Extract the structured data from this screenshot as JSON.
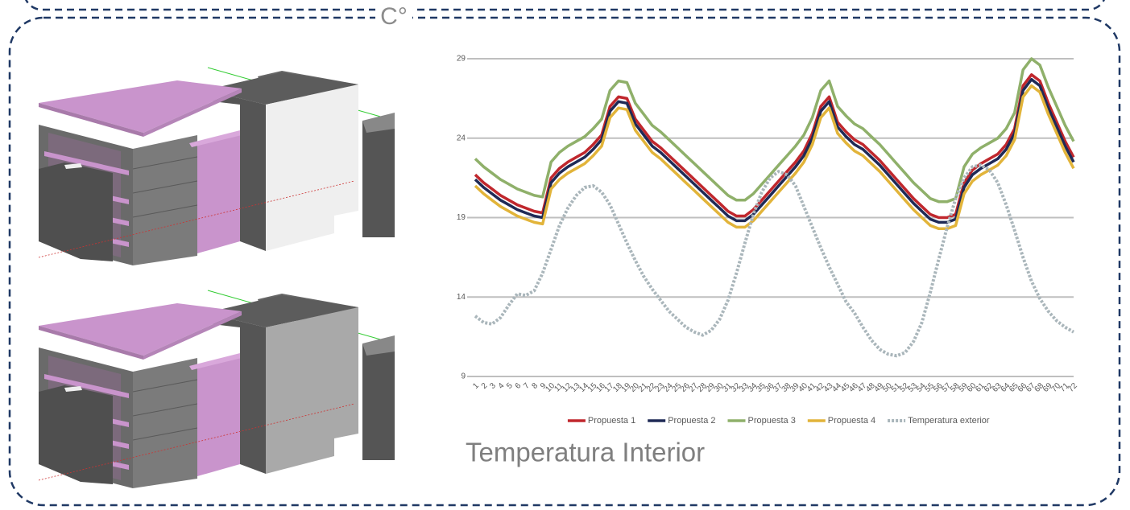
{
  "chart_data": {
    "type": "line",
    "title": "Temperatura Interior",
    "y_label": "C°",
    "categories": [
      "1",
      "2",
      "3",
      "4",
      "5",
      "6",
      "7",
      "8",
      "9",
      "10",
      "11",
      "12",
      "13",
      "14",
      "15",
      "16",
      "17",
      "18",
      "19",
      "20",
      "21",
      "22",
      "23",
      "24",
      "25",
      "26",
      "27",
      "28",
      "29",
      "30",
      "31",
      "32",
      "33",
      "34",
      "35",
      "36",
      "37",
      "38",
      "39",
      "40",
      "41",
      "42",
      "43",
      "44",
      "45",
      "46",
      "47",
      "48",
      "49",
      "50",
      "51",
      "52",
      "53",
      "54",
      "55",
      "56",
      "57",
      "58",
      "59",
      "60",
      "61",
      "62",
      "63",
      "64",
      "65",
      "66",
      "67",
      "68",
      "69",
      "70",
      "71",
      "72"
    ],
    "ylim": [
      9,
      29
    ],
    "yticks": [
      9,
      14,
      19,
      24,
      29
    ],
    "grid": true,
    "legend": "bottom",
    "series": [
      {
        "name": "Propuesta 1",
        "color": "#c0272d",
        "style": "solid",
        "values": [
          21.7,
          21.2,
          20.8,
          20.4,
          20.1,
          19.8,
          19.6,
          19.4,
          19.3,
          21.5,
          22.1,
          22.5,
          22.8,
          23.1,
          23.6,
          24.2,
          26.0,
          26.6,
          26.5,
          25.2,
          24.5,
          23.8,
          23.4,
          22.9,
          22.4,
          21.9,
          21.4,
          20.9,
          20.4,
          19.9,
          19.4,
          19.1,
          19.1,
          19.5,
          20.1,
          20.7,
          21.3,
          21.9,
          22.5,
          23.2,
          24.3,
          26.0,
          26.6,
          25.0,
          24.4,
          23.9,
          23.6,
          23.1,
          22.6,
          22.0,
          21.4,
          20.8,
          20.2,
          19.7,
          19.2,
          19.0,
          19.0,
          19.2,
          21.2,
          22.0,
          22.4,
          22.7,
          23.0,
          23.6,
          24.6,
          27.3,
          28.0,
          27.6,
          26.2,
          25.0,
          23.8,
          22.8
        ]
      },
      {
        "name": "Propuesta 2",
        "color": "#1f2a56",
        "style": "solid",
        "values": [
          21.4,
          20.9,
          20.5,
          20.1,
          19.8,
          19.5,
          19.3,
          19.1,
          19.0,
          21.2,
          21.8,
          22.2,
          22.5,
          22.8,
          23.3,
          23.9,
          25.7,
          26.3,
          26.2,
          24.9,
          24.2,
          23.5,
          23.1,
          22.6,
          22.1,
          21.6,
          21.1,
          20.6,
          20.1,
          19.6,
          19.1,
          18.8,
          18.8,
          19.2,
          19.8,
          20.4,
          21.0,
          21.6,
          22.2,
          22.9,
          24.0,
          25.7,
          26.3,
          24.7,
          24.1,
          23.6,
          23.3,
          22.8,
          22.3,
          21.7,
          21.1,
          20.5,
          19.9,
          19.4,
          18.9,
          18.7,
          18.7,
          18.9,
          20.9,
          21.7,
          22.1,
          22.4,
          22.7,
          23.3,
          24.3,
          27.0,
          27.7,
          27.3,
          25.9,
          24.7,
          23.5,
          22.5
        ]
      },
      {
        "name": "Propuesta 3",
        "color": "#8fb06a",
        "style": "solid",
        "values": [
          22.7,
          22.2,
          21.8,
          21.4,
          21.1,
          20.8,
          20.6,
          20.4,
          20.3,
          22.5,
          23.1,
          23.5,
          23.8,
          24.1,
          24.6,
          25.2,
          27.0,
          27.6,
          27.5,
          26.2,
          25.5,
          24.8,
          24.4,
          23.9,
          23.4,
          22.9,
          22.4,
          21.9,
          21.4,
          20.9,
          20.4,
          20.1,
          20.1,
          20.5,
          21.1,
          21.7,
          22.3,
          22.9,
          23.5,
          24.2,
          25.3,
          27.0,
          27.6,
          26.0,
          25.4,
          24.9,
          24.6,
          24.1,
          23.6,
          23.0,
          22.4,
          21.8,
          21.2,
          20.7,
          20.2,
          20.0,
          20.0,
          20.2,
          22.2,
          23.0,
          23.4,
          23.7,
          24.0,
          24.6,
          25.6,
          28.3,
          29.0,
          28.6,
          27.2,
          26.0,
          24.8,
          23.8
        ]
      },
      {
        "name": "Propuesta 4",
        "color": "#e2b43a",
        "style": "solid",
        "values": [
          21.0,
          20.5,
          20.1,
          19.7,
          19.4,
          19.1,
          18.9,
          18.7,
          18.6,
          20.8,
          21.4,
          21.8,
          22.1,
          22.4,
          22.9,
          23.5,
          25.3,
          25.9,
          25.8,
          24.5,
          23.8,
          23.1,
          22.7,
          22.2,
          21.7,
          21.2,
          20.7,
          20.2,
          19.7,
          19.2,
          18.7,
          18.4,
          18.4,
          18.8,
          19.4,
          20.0,
          20.6,
          21.2,
          21.8,
          22.5,
          23.6,
          25.3,
          25.9,
          24.3,
          23.7,
          23.2,
          22.9,
          22.4,
          21.9,
          21.3,
          20.7,
          20.1,
          19.5,
          19.0,
          18.5,
          18.3,
          18.3,
          18.5,
          20.5,
          21.3,
          21.7,
          22.0,
          22.3,
          22.9,
          23.9,
          26.6,
          27.3,
          26.9,
          25.5,
          24.3,
          23.1,
          22.1
        ]
      },
      {
        "name": "Temperatura exterior",
        "color": "#aab6bb",
        "style": "dotted",
        "values": [
          12.8,
          12.4,
          12.3,
          12.7,
          13.5,
          14.2,
          14.1,
          14.4,
          15.5,
          17.0,
          18.5,
          19.6,
          20.4,
          20.9,
          21.0,
          20.6,
          19.8,
          18.6,
          17.4,
          16.3,
          15.3,
          14.5,
          13.8,
          13.1,
          12.6,
          12.1,
          11.8,
          11.6,
          11.9,
          12.6,
          13.8,
          15.5,
          17.4,
          19.2,
          20.6,
          21.5,
          21.9,
          21.7,
          21.0,
          19.7,
          18.4,
          17.1,
          15.9,
          14.8,
          13.7,
          13.0,
          12.1,
          11.3,
          10.7,
          10.4,
          10.3,
          10.5,
          11.2,
          12.4,
          14.3,
          16.4,
          18.4,
          20.2,
          21.5,
          22.2,
          22.3,
          22.0,
          21.2,
          19.8,
          18.2,
          16.5,
          15.0,
          13.9,
          13.1,
          12.5,
          12.1,
          11.8
        ]
      }
    ]
  }
}
